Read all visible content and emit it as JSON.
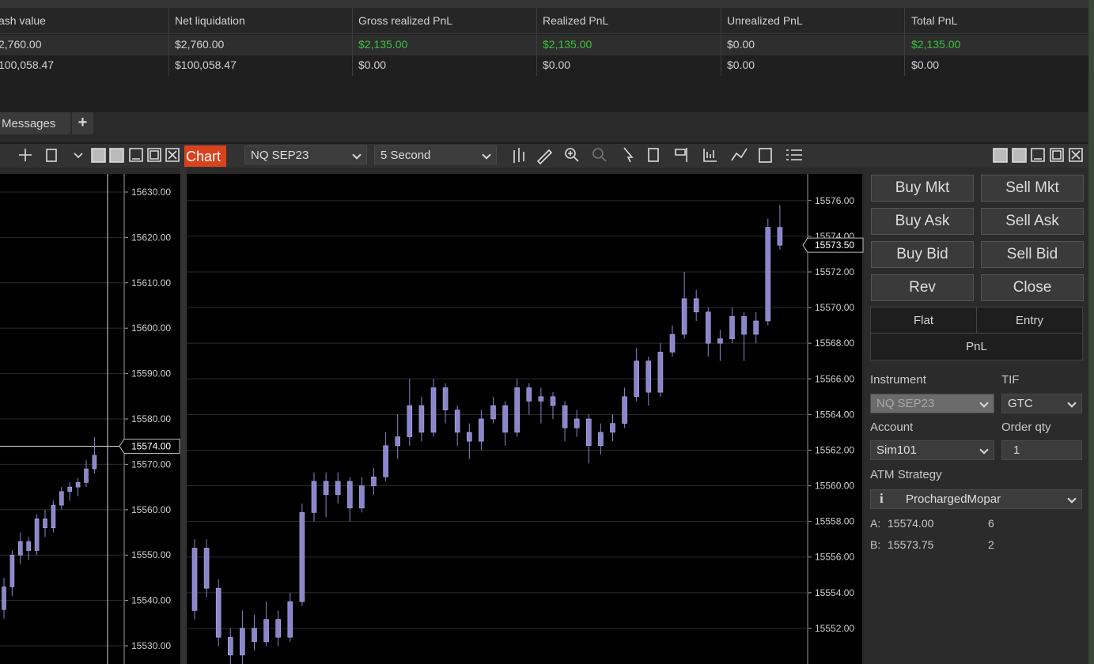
{
  "accounts_table": {
    "columns": [
      "ash value",
      "Net liquidation",
      "Gross realized PnL",
      "Realized PnL",
      "Unrealized PnL",
      "Total PnL"
    ],
    "rows": [
      [
        "2,760.00",
        "$2,760.00",
        "$2,135.00",
        "$2,135.00",
        "$0.00",
        "$2,135.00"
      ],
      [
        "100,058.47",
        "$100,058.47",
        "$0.00",
        "$0.00",
        "$0.00",
        "$0.00"
      ]
    ],
    "green_cells": [
      [
        0,
        2
      ],
      [
        0,
        3
      ],
      [
        0,
        5
      ]
    ],
    "green": "#3cc13c"
  },
  "tabs": {
    "messages": "Messages",
    "add": "+"
  },
  "chart_window": {
    "title": "Chart",
    "instrument": "NQ SEP23",
    "interval": "5 Second"
  },
  "left_chart": {
    "type": "candlestick",
    "candle_color": "#8b85cc",
    "ylim": [
      15526,
      15634
    ],
    "yticks": [
      {
        "value": 15630,
        "label": "15630.00"
      },
      {
        "value": 15620,
        "label": "15620.00"
      },
      {
        "value": 15610,
        "label": "15610.00"
      },
      {
        "value": 15600,
        "label": "15600.00"
      },
      {
        "value": 15590,
        "label": "15590.00"
      },
      {
        "value": 15580,
        "label": "15580.00"
      },
      {
        "value": 15570,
        "label": "15570.00"
      },
      {
        "value": 15560,
        "label": "15560.00"
      },
      {
        "value": 15550,
        "label": "15550.00"
      },
      {
        "value": 15540,
        "label": "15540.00"
      },
      {
        "value": 15530,
        "label": "15530.00"
      }
    ],
    "price_label": {
      "value": 15574,
      "label": "15574.00"
    },
    "candles": [
      [
        15538,
        15545,
        15536,
        15543
      ],
      [
        15543,
        15551,
        15541,
        15550
      ],
      [
        15550,
        15555,
        15548,
        15553
      ],
      [
        15553,
        15554,
        15549,
        15551
      ],
      [
        15551,
        15559,
        15550,
        15558
      ],
      [
        15558,
        15560,
        15554,
        15556
      ],
      [
        15556,
        15562,
        15555,
        15561
      ],
      [
        15561,
        15565,
        15560,
        15564
      ],
      [
        15564,
        15566,
        15562,
        15565
      ],
      [
        15565,
        15567,
        15563,
        15566
      ],
      [
        15566,
        15571,
        15565,
        15569
      ],
      [
        15569,
        15576,
        15568,
        15572
      ]
    ]
  },
  "chart": {
    "type": "candlestick",
    "candle_color": "#8b85cc",
    "ylim": [
      15550,
      15577.5
    ],
    "yticks": [
      {
        "value": 15576,
        "label": "15576.00"
      },
      {
        "value": 15574,
        "label": "15574.00"
      },
      {
        "value": 15572,
        "label": "15572.00"
      },
      {
        "value": 15570,
        "label": "15570.00"
      },
      {
        "value": 15568,
        "label": "15568.00"
      },
      {
        "value": 15566,
        "label": "15566.00"
      },
      {
        "value": 15564,
        "label": "15564.00"
      },
      {
        "value": 15562,
        "label": "15562.00"
      },
      {
        "value": 15560,
        "label": "15560.00"
      },
      {
        "value": 15558,
        "label": "15558.00"
      },
      {
        "value": 15556,
        "label": "15556.00"
      },
      {
        "value": 15554,
        "label": "15554.00"
      },
      {
        "value": 15552,
        "label": "15552.00"
      }
    ],
    "price_label": {
      "value": 15573.5,
      "label": "15573.50"
    },
    "candles": [
      [
        15553,
        15557,
        15552.5,
        15556.5
      ],
      [
        15556.5,
        15557,
        15553.75,
        15554.25
      ],
      [
        15554.25,
        15554.75,
        15551,
        15551.5
      ],
      [
        15551.5,
        15552,
        15549.5,
        15550.5
      ],
      [
        15550.5,
        15553,
        15550,
        15552
      ],
      [
        15552,
        15552.75,
        15550.75,
        15551.25
      ],
      [
        15551.25,
        15553.5,
        15551,
        15552.5
      ],
      [
        15552.5,
        15553,
        15551,
        15551.5
      ],
      [
        15551.5,
        15554,
        15551.25,
        15553.5
      ],
      [
        15553.5,
        15559,
        15553.25,
        15558.5
      ],
      [
        15558.5,
        15560.75,
        15558,
        15560.25
      ],
      [
        15560.25,
        15560.75,
        15558.25,
        15559.5
      ],
      [
        15559.5,
        15560.75,
        15559,
        15560.25
      ],
      [
        15560.25,
        15560.5,
        15558,
        15558.75
      ],
      [
        15558.75,
        15560.5,
        15558.5,
        15560
      ],
      [
        15560,
        15561,
        15559.5,
        15560.5
      ],
      [
        15560.5,
        15563,
        15560.25,
        15562.25
      ],
      [
        15562.25,
        15564,
        15561.5,
        15562.75
      ],
      [
        15562.75,
        15566,
        15562.25,
        15564.5
      ],
      [
        15564.5,
        15565,
        15562.5,
        15563
      ],
      [
        15563,
        15566,
        15562.75,
        15565.5
      ],
      [
        15565.5,
        15565.75,
        15563.5,
        15564.25
      ],
      [
        15564.25,
        15564.5,
        15562.25,
        15563
      ],
      [
        15563,
        15563.5,
        15561.5,
        15562.5
      ],
      [
        15562.5,
        15564.25,
        15562,
        15563.75
      ],
      [
        15563.75,
        15565,
        15563.5,
        15564.5
      ],
      [
        15564.5,
        15564.75,
        15562.25,
        15563
      ],
      [
        15563,
        15566,
        15562.75,
        15565.5
      ],
      [
        15565.5,
        15565.75,
        15564,
        15564.75
      ],
      [
        15564.75,
        15565.5,
        15563.5,
        15565
      ],
      [
        15565,
        15565.25,
        15563.75,
        15564.5
      ],
      [
        15564.5,
        15564.75,
        15562.5,
        15563.25
      ],
      [
        15563.25,
        15564.25,
        15562.75,
        15563.75
      ],
      [
        15563.75,
        15564,
        15561.25,
        15562.25
      ],
      [
        15562.25,
        15563.5,
        15561.75,
        15563
      ],
      [
        15563,
        15564,
        15562.5,
        15563.5
      ],
      [
        15563.5,
        15565.5,
        15563.25,
        15565
      ],
      [
        15565,
        15567.75,
        15564.75,
        15567
      ],
      [
        15567,
        15567.25,
        15564.5,
        15565.25
      ],
      [
        15565.25,
        15568,
        15565,
        15567.5
      ],
      [
        15567.5,
        15569,
        15567.25,
        15568.5
      ],
      [
        15568.5,
        15572,
        15568.25,
        15570.5
      ],
      [
        15570.5,
        15571,
        15569.25,
        15569.75
      ],
      [
        15569.75,
        15570,
        15567.25,
        15568
      ],
      [
        15568,
        15568.75,
        15567,
        15568.25
      ],
      [
        15568.25,
        15570,
        15568,
        15569.5
      ],
      [
        15569.5,
        15569.75,
        15567,
        15568.5
      ],
      [
        15568.5,
        15569.75,
        15568,
        15569.25
      ],
      [
        15569.25,
        15575,
        15569,
        15574.5
      ],
      [
        15574.5,
        15575.75,
        15573.25,
        15573.5
      ]
    ]
  },
  "order_panel": {
    "buttons": [
      "Buy Mkt",
      "Sell Mkt",
      "Buy Ask",
      "Sell Ask",
      "Buy Bid",
      "Sell Bid",
      "Rev",
      "Close"
    ],
    "tabs": [
      "Flat",
      "Entry",
      "PnL"
    ],
    "instrument_label": "Instrument",
    "instrument": "NQ SEP23",
    "tif_label": "TIF",
    "tif": "GTC",
    "account_label": "Account",
    "account": "Sim101",
    "qty_label": "Order qty",
    "qty": "1",
    "atm_label": "ATM Strategy",
    "atm": "ProchargedMopar",
    "ask_label": "A:",
    "ask": "15574.00",
    "ask_size": "6",
    "bid_label": "B:",
    "bid": "15573.75",
    "bid_size": "2"
  }
}
